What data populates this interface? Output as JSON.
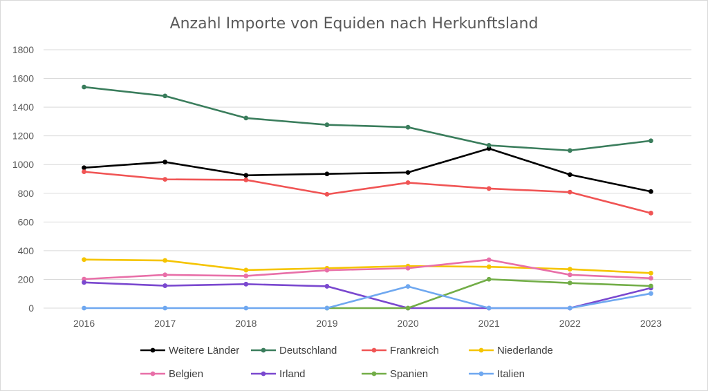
{
  "chart_data": {
    "type": "line",
    "title": "Anzahl Importe von Equiden nach Herkunftsland",
    "xlabel": "",
    "ylabel": "",
    "categories": [
      "2016",
      "2017",
      "2018",
      "2019",
      "2020",
      "2021",
      "2022",
      "2023"
    ],
    "ylim": [
      0,
      1800
    ],
    "yticks": [
      0,
      200,
      400,
      600,
      800,
      1000,
      1200,
      1400,
      1600,
      1800
    ],
    "grid": true,
    "legend_position": "bottom",
    "series": [
      {
        "name": "Weitere Länder",
        "color": "#000000",
        "values": [
          978,
          1018,
          925,
          935,
          945,
          1112,
          930,
          812
        ]
      },
      {
        "name": "Deutschland",
        "color": "#3a7d5c",
        "values": [
          1540,
          1478,
          1324,
          1277,
          1260,
          1134,
          1098,
          1166
        ]
      },
      {
        "name": "Frankreich",
        "color": "#f05454",
        "values": [
          950,
          897,
          893,
          793,
          874,
          833,
          808,
          662
        ]
      },
      {
        "name": "Niederlande",
        "color": "#f5c400",
        "values": [
          338,
          332,
          265,
          278,
          293,
          288,
          271,
          244
        ]
      },
      {
        "name": "Belgien",
        "color": "#e86fa8",
        "values": [
          202,
          232,
          224,
          264,
          278,
          337,
          232,
          208
        ]
      },
      {
        "name": "Irland",
        "color": "#7a48cf",
        "values": [
          179,
          156,
          167,
          152,
          0,
          0,
          0,
          140
        ]
      },
      {
        "name": "Spanien",
        "color": "#72ad47",
        "values": [
          null,
          null,
          null,
          0,
          0,
          201,
          175,
          154
        ]
      },
      {
        "name": "Italien",
        "color": "#6fa8f0",
        "values": [
          0,
          0,
          0,
          0,
          151,
          0,
          0,
          102
        ]
      }
    ]
  }
}
